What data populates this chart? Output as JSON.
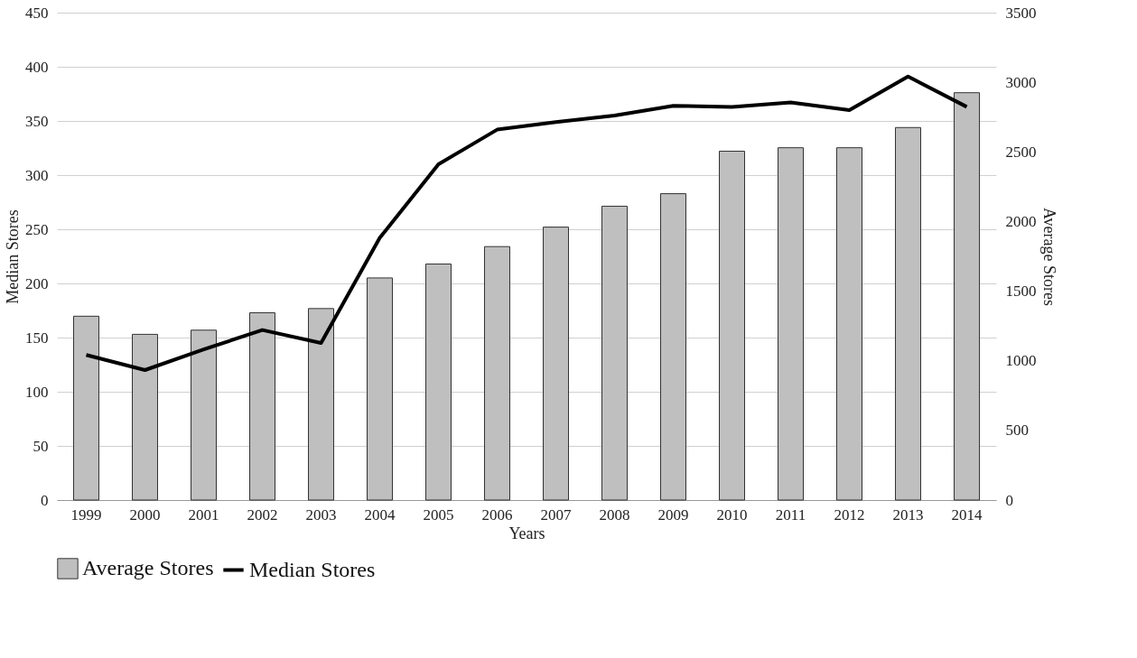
{
  "chart_data": {
    "type": "bar",
    "xlabel": "Years",
    "ylabel": "Median Stores",
    "y2label": "Average Stores",
    "categories": [
      "1999",
      "2000",
      "2001",
      "2002",
      "2003",
      "2004",
      "2005",
      "2006",
      "2007",
      "2008",
      "2009",
      "2010",
      "2011",
      "2012",
      "2013",
      "2014"
    ],
    "series": [
      {
        "name": "Average Stores",
        "axis": "y2",
        "color": "#bfbfbf",
        "values": [
          1320,
          1190,
          1220,
          1345,
          1375,
          1595,
          1695,
          1820,
          1960,
          2110,
          2200,
          2505,
          2530,
          2530,
          2675,
          2925
        ]
      },
      {
        "name": "Median Stores",
        "type": "line",
        "color": "#000000",
        "values": [
          134,
          120,
          139,
          157,
          145,
          242,
          310,
          342,
          349,
          355,
          364,
          363,
          367,
          360,
          391,
          363
        ]
      }
    ],
    "ylim": [
      0,
      450
    ],
    "yticks": [
      0,
      50,
      100,
      150,
      200,
      250,
      300,
      350,
      400,
      450
    ],
    "y2lim": [
      0,
      3500
    ],
    "y2ticks": [
      0,
      500,
      1000,
      1500,
      2000,
      2500,
      3000,
      3500
    ],
    "grid": "y",
    "legend": "bottom",
    "marker": "none",
    "line_style": "solid"
  }
}
